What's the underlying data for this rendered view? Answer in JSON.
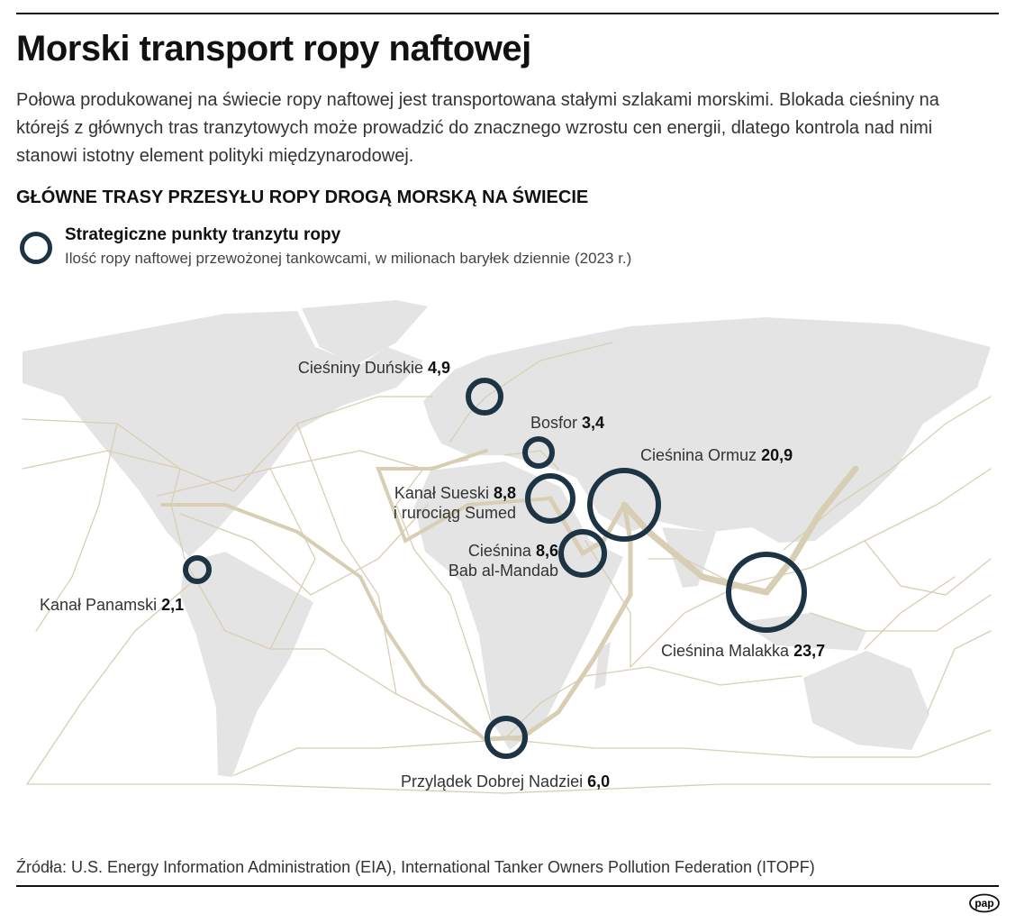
{
  "title": "Morski transport ropy naftowej",
  "lead": "Połowa produkowanej na świecie ropy naftowej jest transportowana stałymi szlakami morskimi. Blokada cieśniny na którejś z głównych tras tranzytowych może prowadzić do znacznego wzrostu cen energii, dlatego kontrola nad nimi stanowi istotny element polityki międzynarodowej.",
  "subtitle": "GŁÓWNE TRASY PRZESYŁU ROPY DROGĄ MORSKĄ NA ŚWIECIE",
  "legend": {
    "title": "Strategiczne punkty tranzytu ropy",
    "description": "Ilość ropy naftowej przewożonej tankowcami, w milionach baryłek dziennie (2023 r.)"
  },
  "chokepoints": [
    {
      "name": "Cieśniny Duńskie",
      "value": "4,9"
    },
    {
      "name": "Bosfor",
      "value": "3,4"
    },
    {
      "name": "Cieśnina Ormuz",
      "value": "20,9"
    },
    {
      "name": "Kanał Sueski",
      "name2": "i rurociąg Sumed",
      "value": "8,8"
    },
    {
      "name": "Cieśnina",
      "name2": "Bab al-Mandab",
      "value": "8,6"
    },
    {
      "name": "Kanał Panamski",
      "value": "2,1"
    },
    {
      "name": "Cieśnina Malakka",
      "value": "23,7"
    },
    {
      "name": "Przylądek Dobrej Nadziei",
      "value": "6,0"
    }
  ],
  "source": "Źródła: U.S. Energy Information Administration (EIA), International Tanker Owners Pollution Federation (ITOPF)",
  "logo": "pap",
  "colors": {
    "land": "#e4e4e4",
    "route": "#d8ceb4",
    "ring": "#1d3444"
  }
}
